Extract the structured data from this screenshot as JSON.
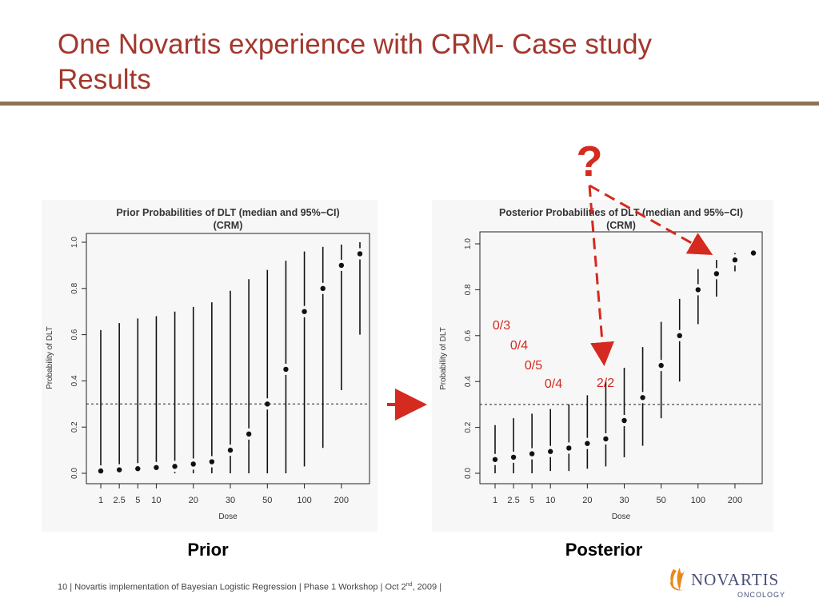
{
  "slide": {
    "title_line1": "One Novartis experience with CRM- Case study",
    "title_line2": "Results",
    "footer_num": "10",
    "footer_text": " | Novartis implementation of Bayesian Logistic Regression | Phase 1 Workshop | Oct 2",
    "footer_sup": "nd",
    "footer_tail": ", 2009 |",
    "logo_name": "NOVARTIS",
    "logo_sub": "ONCOLOGY"
  },
  "annotations": {
    "question_mark": "?",
    "question_color": "#d42a1f",
    "arrow_color": "#d42a1f"
  },
  "chart_data": [
    {
      "type": "scatter",
      "title": "Prior Probabilities of DLT (median and 95%−CI)",
      "subtitle": "(CRM)",
      "xlabel": "Dose",
      "ylabel": "Probability of DLT",
      "caption": "Prior",
      "yticks": [
        "0.0",
        "0.2",
        "0.4",
        "0.6",
        "0.8",
        "1.0"
      ],
      "ylim": [
        0,
        1
      ],
      "x_tick_labels": [
        "1",
        "2.5",
        "5",
        "10",
        "20",
        "30",
        "50",
        "100",
        "200"
      ],
      "x_tick_at_dose": [
        1,
        2,
        3,
        4,
        6,
        8,
        10,
        12,
        14
      ],
      "dose_count": 15,
      "reference_line": 0.3,
      "points": [
        {
          "dose": 1,
          "median": 0.01,
          "lower": 0.0,
          "upper": 0.62
        },
        {
          "dose": 2,
          "median": 0.015,
          "lower": 0.0,
          "upper": 0.65
        },
        {
          "dose": 3,
          "median": 0.02,
          "lower": 0.0,
          "upper": 0.67
        },
        {
          "dose": 4,
          "median": 0.025,
          "lower": 0.0,
          "upper": 0.68
        },
        {
          "dose": 5,
          "median": 0.03,
          "lower": 0.0,
          "upper": 0.7
        },
        {
          "dose": 6,
          "median": 0.04,
          "lower": 0.0,
          "upper": 0.72
        },
        {
          "dose": 7,
          "median": 0.05,
          "lower": 0.0,
          "upper": 0.74
        },
        {
          "dose": 8,
          "median": 0.1,
          "lower": 0.0,
          "upper": 0.79
        },
        {
          "dose": 9,
          "median": 0.17,
          "lower": 0.0,
          "upper": 0.84
        },
        {
          "dose": 10,
          "median": 0.3,
          "lower": 0.0,
          "upper": 0.88
        },
        {
          "dose": 11,
          "median": 0.45,
          "lower": 0.0,
          "upper": 0.92
        },
        {
          "dose": 12,
          "median": 0.7,
          "lower": 0.03,
          "upper": 0.96
        },
        {
          "dose": 13,
          "median": 0.8,
          "lower": 0.11,
          "upper": 0.98
        },
        {
          "dose": 14,
          "median": 0.9,
          "lower": 0.36,
          "upper": 0.99
        },
        {
          "dose": 15,
          "median": 0.95,
          "lower": 0.6,
          "upper": 1.0
        }
      ]
    },
    {
      "type": "scatter",
      "title": "Posterior Probabilities of DLT (median and 95%−CI)",
      "subtitle": "(CRM)",
      "xlabel": "Dose",
      "ylabel": "Probability of DLT",
      "caption": "Posterior",
      "yticks": [
        "0.0",
        "0.2",
        "0.4",
        "0.6",
        "0.8",
        "1.0"
      ],
      "ylim": [
        0,
        1
      ],
      "x_tick_labels": [
        "1",
        "2.5",
        "5",
        "10",
        "20",
        "30",
        "50",
        "100",
        "200"
      ],
      "x_tick_at_dose": [
        1,
        2,
        3,
        4,
        6,
        8,
        10,
        12,
        14
      ],
      "dose_count": 15,
      "reference_line": 0.3,
      "points": [
        {
          "dose": 1,
          "median": 0.06,
          "lower": 0.0,
          "upper": 0.21
        },
        {
          "dose": 2,
          "median": 0.07,
          "lower": 0.0,
          "upper": 0.24
        },
        {
          "dose": 3,
          "median": 0.085,
          "lower": 0.0,
          "upper": 0.26
        },
        {
          "dose": 4,
          "median": 0.095,
          "lower": 0.01,
          "upper": 0.28
        },
        {
          "dose": 5,
          "median": 0.11,
          "lower": 0.01,
          "upper": 0.3
        },
        {
          "dose": 6,
          "median": 0.13,
          "lower": 0.02,
          "upper": 0.34
        },
        {
          "dose": 7,
          "median": 0.15,
          "lower": 0.03,
          "upper": 0.4
        },
        {
          "dose": 8,
          "median": 0.23,
          "lower": 0.07,
          "upper": 0.46
        },
        {
          "dose": 9,
          "median": 0.33,
          "lower": 0.12,
          "upper": 0.55
        },
        {
          "dose": 10,
          "median": 0.47,
          "lower": 0.24,
          "upper": 0.66
        },
        {
          "dose": 11,
          "median": 0.6,
          "lower": 0.4,
          "upper": 0.76
        },
        {
          "dose": 12,
          "median": 0.8,
          "lower": 0.65,
          "upper": 0.89
        },
        {
          "dose": 13,
          "median": 0.87,
          "lower": 0.77,
          "upper": 0.93
        },
        {
          "dose": 14,
          "median": 0.93,
          "lower": 0.88,
          "upper": 0.96
        },
        {
          "dose": 15,
          "median": 0.96,
          "lower": 0.95,
          "upper": 0.97
        }
      ],
      "observed_labels": [
        "0/3",
        "0/4",
        "0/5",
        "0/4",
        "2/2"
      ]
    }
  ]
}
